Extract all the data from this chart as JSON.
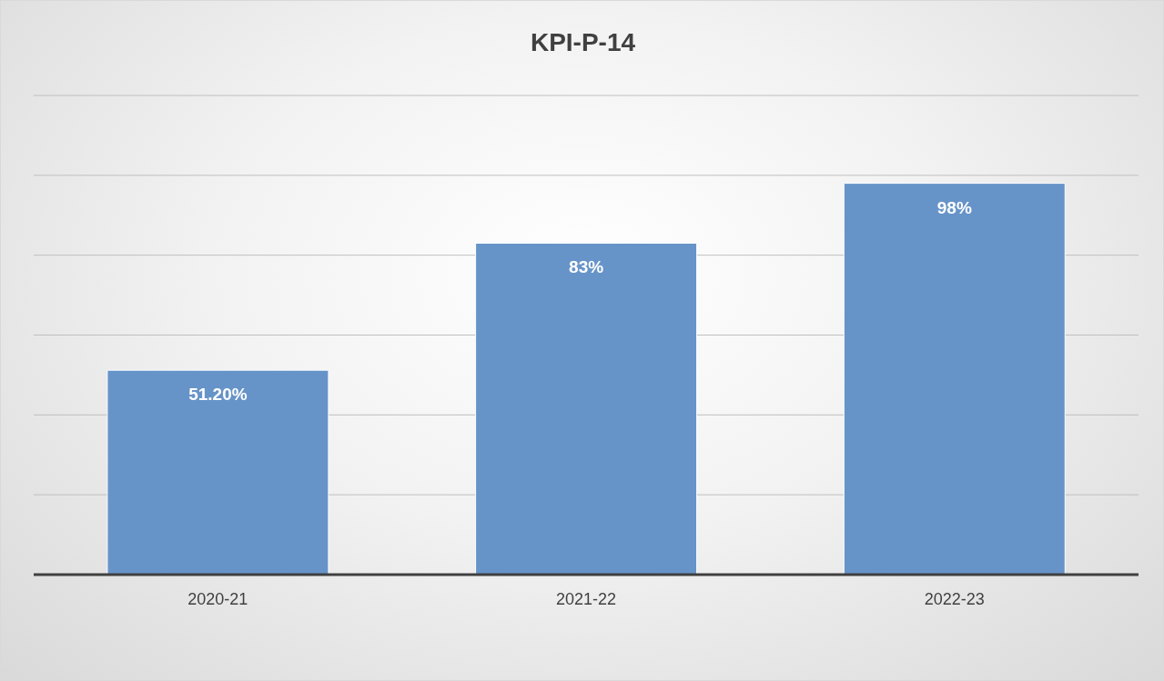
{
  "chart_data": {
    "type": "bar",
    "title": "KPI-P-14",
    "categories": [
      "2020-21",
      "2021-22",
      "2022-23"
    ],
    "values": [
      51.2,
      83,
      98
    ],
    "value_labels": [
      "51.20%",
      "83%",
      "98%"
    ],
    "color": "#6794c8",
    "tick_labels": "x",
    "grid": "y"
  }
}
